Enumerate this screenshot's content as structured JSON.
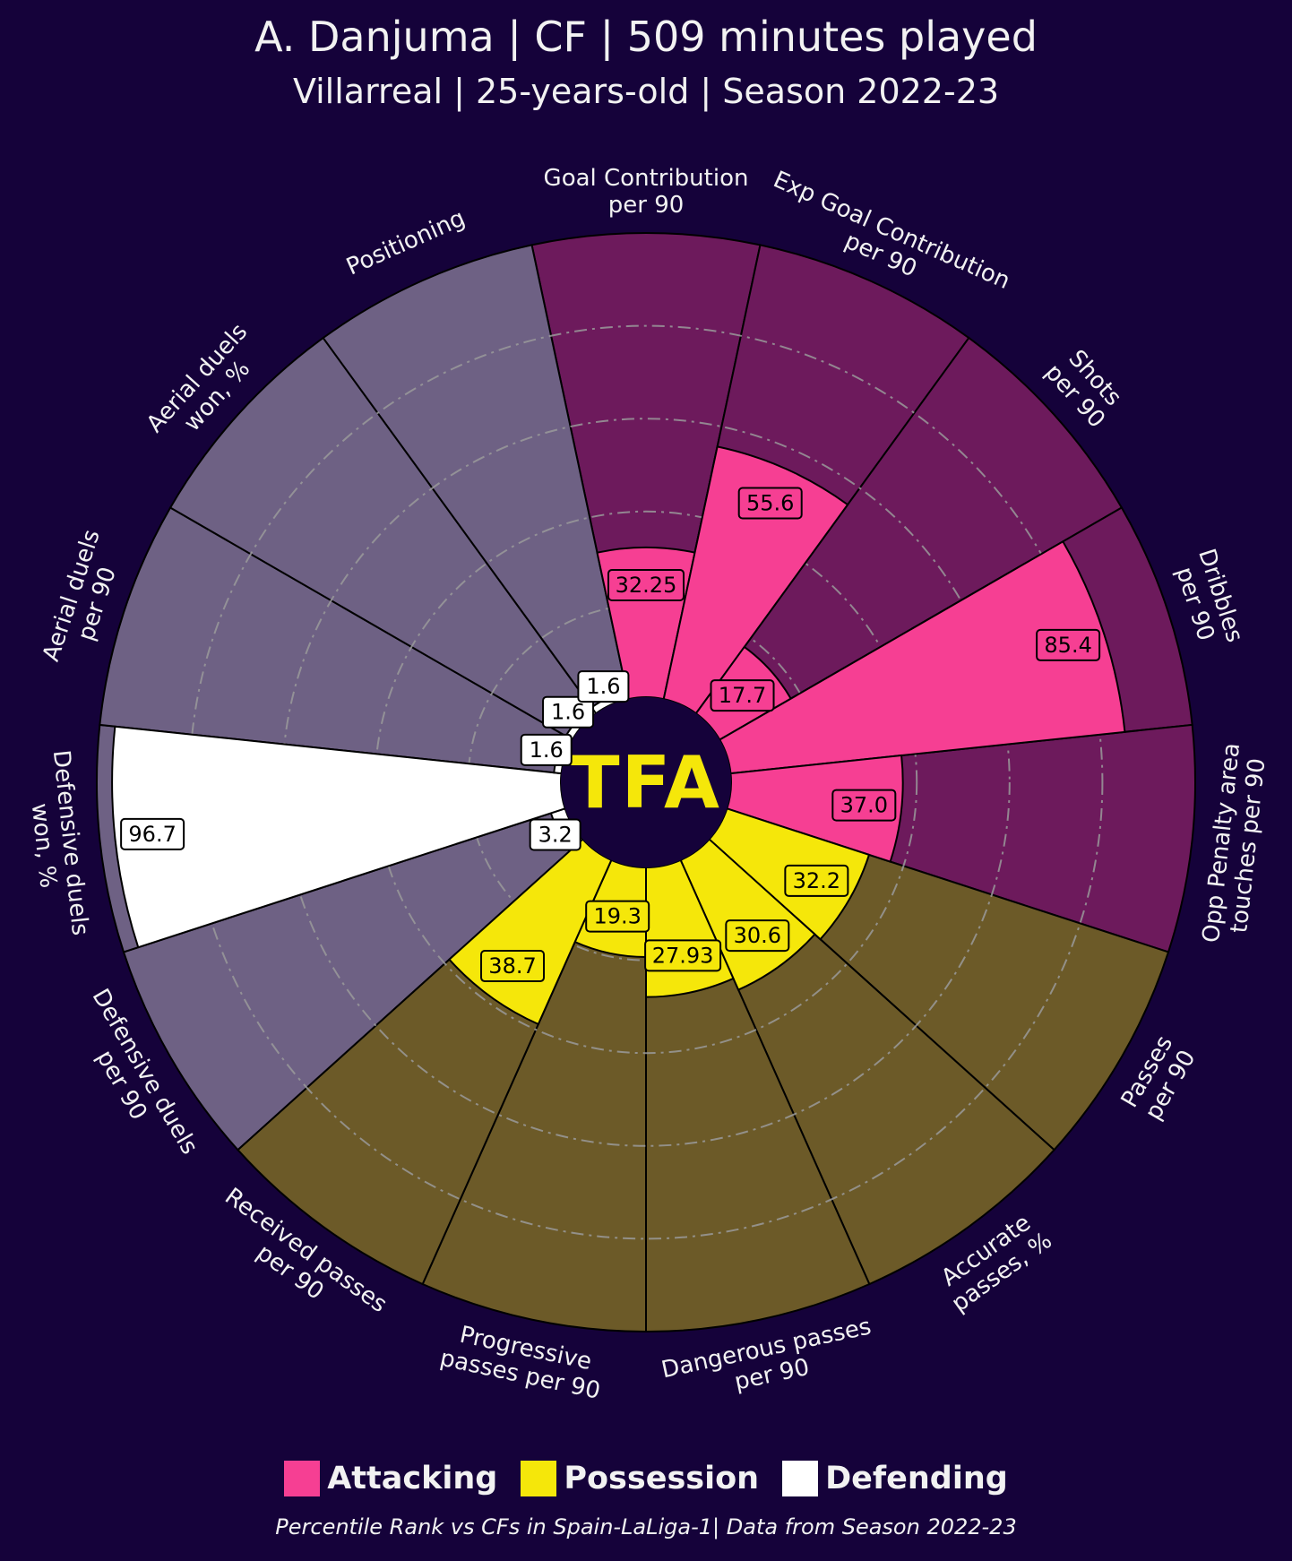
{
  "header": {
    "title": "A. Danjuma | CF | 509 minutes played",
    "subtitle": "Villarreal | 25-years-old | Season 2022-23"
  },
  "logo_text": "TFA",
  "colors": {
    "background": "#15023a",
    "attacking": "#f63f93",
    "attacking_bg": "#6d1a5c",
    "possession": "#f5e70a",
    "possession_bg": "#6c5a28",
    "defending": "#ffffff",
    "defending_bg": "#6e6184",
    "logo": "#f5e70a"
  },
  "legend": [
    {
      "label": "Attacking",
      "color": "#f63f93"
    },
    {
      "label": "Possession",
      "color": "#f5e70a"
    },
    {
      "label": "Defending",
      "color": "#ffffff"
    }
  ],
  "footer": "Percentile Rank vs CFs in Spain-LaLiga-1| Data from Season 2022-23",
  "chart_data": {
    "type": "pizza",
    "range": [
      0,
      100
    ],
    "params": [
      {
        "label": [
          "Goal Contribution",
          "per 90"
        ],
        "value": 32.25,
        "display": "32.25",
        "group": "Attacking"
      },
      {
        "label": [
          "Exp Goal Contribution",
          "per 90"
        ],
        "value": 55.6,
        "display": "55.6",
        "group": "Attacking"
      },
      {
        "label": [
          "Shots",
          "per 90"
        ],
        "value": 17.7,
        "display": "17.7",
        "group": "Attacking"
      },
      {
        "label": [
          "Dribbles",
          "per 90"
        ],
        "value": 85.4,
        "display": "85.4",
        "group": "Attacking"
      },
      {
        "label": [
          "Opp Penalty area",
          "touches per 90"
        ],
        "value": 37.0,
        "display": "37.0",
        "group": "Attacking"
      },
      {
        "label": [
          "Passes",
          "per 90"
        ],
        "value": 32.2,
        "display": "32.2",
        "group": "Possession"
      },
      {
        "label": [
          "Accurate",
          "passes, %"
        ],
        "value": 30.6,
        "display": "30.6",
        "group": "Possession"
      },
      {
        "label": [
          "Dangerous passes",
          "per 90"
        ],
        "value": 27.93,
        "display": "27.93",
        "group": "Possession"
      },
      {
        "label": [
          "Progressive",
          "passes per 90"
        ],
        "value": 19.3,
        "display": "19.3",
        "group": "Possession"
      },
      {
        "label": [
          "Received passes",
          "per 90"
        ],
        "value": 38.7,
        "display": "38.7",
        "group": "Possession"
      },
      {
        "label": [
          "Defensive duels",
          "per 90"
        ],
        "value": 3.2,
        "display": "3.2",
        "group": "Defending"
      },
      {
        "label": [
          "Defensive duels",
          "won, %"
        ],
        "value": 96.7,
        "display": "96.7",
        "group": "Defending"
      },
      {
        "label": [
          "Aerial duels",
          "per 90"
        ],
        "value": 1.6,
        "display": "1.6",
        "group": "Defending"
      },
      {
        "label": [
          "Aerial duels",
          "won, %"
        ],
        "value": 1.6,
        "display": "1.6",
        "group": "Defending"
      },
      {
        "label": [
          "Positioning"
        ],
        "value": 1.6,
        "display": "1.6",
        "group": "Defending"
      }
    ]
  }
}
